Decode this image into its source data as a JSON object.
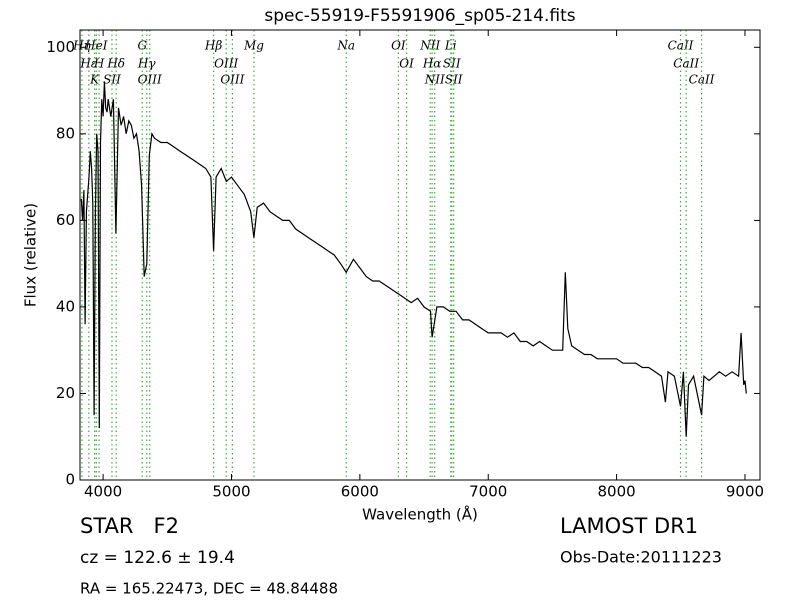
{
  "chart_data": {
    "type": "line",
    "title": "spec-55919-F5591906_sp05-214.fits",
    "x_label": "Wavelength (Å)",
    "y_label": "Flux (relative)",
    "xlim": [
      3820,
      9117
    ],
    "ylim": [
      0,
      104
    ],
    "xticks": [
      4000,
      5000,
      6000,
      7000,
      8000,
      9000
    ],
    "yticks": [
      0,
      20,
      40,
      60,
      80,
      100
    ],
    "color": "#000000",
    "x": [
      3830,
      3840,
      3850,
      3860,
      3870,
      3880,
      3890,
      3900,
      3910,
      3920,
      3930,
      3940,
      3950,
      3960,
      3970,
      3980,
      3990,
      4000,
      4010,
      4020,
      4030,
      4040,
      4060,
      4080,
      4100,
      4120,
      4140,
      4160,
      4180,
      4200,
      4220,
      4240,
      4260,
      4280,
      4300,
      4320,
      4340,
      4360,
      4380,
      4400,
      4450,
      4500,
      4550,
      4600,
      4650,
      4700,
      4750,
      4800,
      4840,
      4861,
      4880,
      4920,
      4960,
      5000,
      5050,
      5100,
      5150,
      5175,
      5200,
      5250,
      5300,
      5350,
      5400,
      5450,
      5500,
      5550,
      5600,
      5650,
      5700,
      5750,
      5800,
      5850,
      5894,
      5950,
      6000,
      6050,
      6100,
      6150,
      6200,
      6250,
      6300,
      6350,
      6400,
      6450,
      6500,
      6550,
      6563,
      6600,
      6650,
      6700,
      6750,
      6800,
      6850,
      6900,
      6950,
      7000,
      7050,
      7100,
      7150,
      7200,
      7250,
      7300,
      7350,
      7400,
      7450,
      7500,
      7550,
      7580,
      7600,
      7620,
      7650,
      7700,
      7750,
      7800,
      7850,
      7900,
      7950,
      8000,
      8050,
      8100,
      8150,
      8200,
      8250,
      8300,
      8350,
      8380,
      8400,
      8450,
      8498,
      8520,
      8542,
      8560,
      8600,
      8662,
      8680,
      8720,
      8760,
      8800,
      8850,
      8900,
      8950,
      8970,
      8990,
      9000,
      9010
    ],
    "values": [
      65,
      60,
      67,
      36,
      62,
      66,
      70,
      76,
      72,
      64,
      15,
      62,
      80,
      76,
      12,
      78,
      88,
      84,
      92,
      86,
      85,
      88,
      84,
      88,
      57,
      86,
      82,
      84,
      80,
      83,
      82,
      79,
      80,
      76,
      68,
      47,
      50,
      75,
      80,
      79,
      78,
      78,
      77,
      76,
      75,
      74,
      73,
      72,
      70,
      53,
      70,
      72,
      69,
      70,
      68,
      66,
      62,
      56,
      63,
      64,
      62,
      61,
      60,
      60,
      58,
      57,
      56,
      55,
      54,
      53,
      52,
      50,
      48,
      51,
      49,
      47,
      46,
      46,
      45,
      44,
      43,
      42,
      41,
      42,
      40,
      39,
      33,
      40,
      40,
      39,
      39,
      37,
      37,
      36,
      35,
      34,
      34,
      34,
      33,
      34,
      32,
      32,
      31,
      32,
      31,
      30,
      30,
      30,
      48,
      35,
      31,
      30,
      29,
      29,
      28,
      28,
      28,
      28,
      27,
      27,
      27,
      26,
      26,
      25,
      24,
      18,
      25,
      24,
      17,
      25,
      10,
      22,
      24,
      15,
      24,
      23,
      24,
      25,
      24,
      25,
      24,
      34,
      22,
      23,
      20
    ],
    "line_color": "#44aa44",
    "lines": [
      {
        "label": "Hη",
        "wavelength": 3835
      },
      {
        "label": "Hε",
        "wavelength": 3889
      },
      {
        "label": "K",
        "wavelength": 3934
      },
      {
        "label": "HeI",
        "wavelength": 3947
      },
      {
        "label": "H",
        "wavelength": 3969
      },
      {
        "label": "SII",
        "wavelength": 4069
      },
      {
        "label": "Hδ",
        "wavelength": 4102
      },
      {
        "label": "G",
        "wavelength": 4305
      },
      {
        "label": "Hγ",
        "wavelength": 4340
      },
      {
        "label": "OIII",
        "wavelength": 4363
      },
      {
        "label": "Hβ",
        "wavelength": 4861
      },
      {
        "label": "OIII",
        "wavelength": 4959
      },
      {
        "label": "OIII",
        "wavelength": 5007
      },
      {
        "label": "Mg",
        "wavelength": 5175
      },
      {
        "label": "Na",
        "wavelength": 5894
      },
      {
        "label": "OI",
        "wavelength": 6300
      },
      {
        "label": "OI",
        "wavelength": 6364
      },
      {
        "label": "NII",
        "wavelength": 6548
      },
      {
        "label": "Hα",
        "wavelength": 6563
      },
      {
        "label": "NII",
        "wavelength": 6583
      },
      {
        "label": "Li",
        "wavelength": 6708
      },
      {
        "label": "SII",
        "wavelength": 6716
      },
      {
        "label": "SII",
        "wavelength": 6731
      },
      {
        "label": "CaII",
        "wavelength": 8498
      },
      {
        "label": "CaII",
        "wavelength": 8542
      },
      {
        "label": "CaII",
        "wavelength": 8662
      }
    ],
    "class_label": "STAR   F2",
    "redshift": "cz = 122.6 ± 19.4",
    "coords": "RA = 165.22473, DEC = 48.84488",
    "survey": "LAMOST DR1",
    "obs_date": "Obs-Date:20111223"
  }
}
